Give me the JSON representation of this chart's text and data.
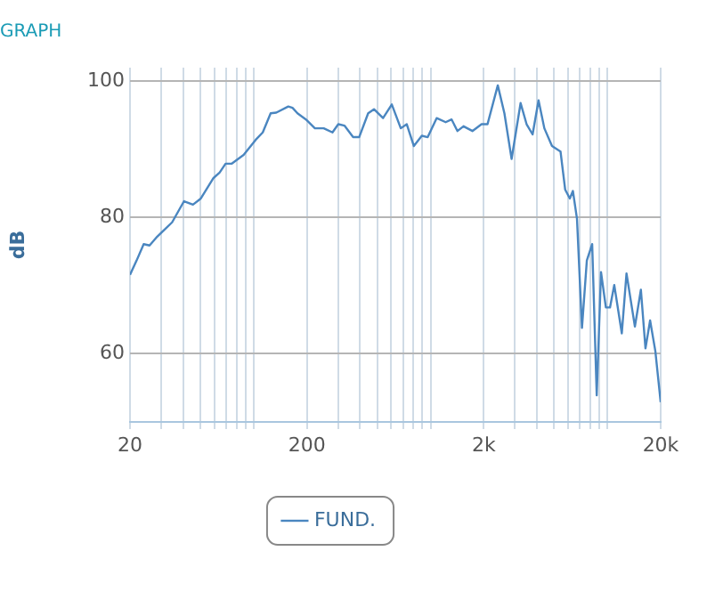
{
  "chart_data": {
    "type": "line",
    "title": "GRAPH",
    "ylabel": "dB",
    "log": "x",
    "grid": true,
    "legend": "bottom",
    "marker": "none",
    "line_style": "solid",
    "xlim": [
      20,
      20000
    ],
    "ylim": [
      50,
      102
    ],
    "yticks": [
      60,
      80,
      100
    ],
    "xticks": [
      20,
      {
        "value": 30,
        "label": null
      },
      {
        "value": 40,
        "label": null
      },
      {
        "value": 50,
        "label": null
      },
      {
        "value": 60,
        "label": null
      },
      {
        "value": 70,
        "label": null
      },
      {
        "value": 80,
        "label": null
      },
      {
        "value": 90,
        "label": null
      },
      {
        "value": 100,
        "label": null
      },
      200,
      {
        "value": 300,
        "label": null
      },
      {
        "value": 400,
        "label": null
      },
      {
        "value": 500,
        "label": null
      },
      {
        "value": 600,
        "label": null
      },
      {
        "value": 700,
        "label": null
      },
      {
        "value": 800,
        "label": null
      },
      {
        "value": 900,
        "label": null
      },
      {
        "value": 1000,
        "label": null
      },
      {
        "value": 2000,
        "label": "2k"
      },
      {
        "value": 3000,
        "label": null
      },
      {
        "value": 4000,
        "label": null
      },
      {
        "value": 5000,
        "label": null
      },
      {
        "value": 6000,
        "label": null
      },
      {
        "value": 7000,
        "label": null
      },
      {
        "value": 8000,
        "label": null
      },
      {
        "value": 9000,
        "label": null
      },
      {
        "value": 10000,
        "label": null
      },
      {
        "value": 20000,
        "label": "20k"
      }
    ],
    "x": [
      20,
      21.8,
      23.9,
      25.8,
      28.5,
      34.6,
      40.4,
      45.4,
      50.3,
      59.3,
      64.2,
      69.4,
      75,
      87.8,
      102.6,
      112.6,
      124.8,
      134.3,
      157,
      165.9,
      176.9,
      197.5,
      222,
      249,
      279,
      301,
      326,
      365,
      395,
      444,
      479,
      539,
      604,
      679,
      734,
      805,
      893,
      964,
      1083,
      1218,
      1316,
      1420,
      1536,
      1725,
      1943,
      2100,
      2400,
      2616,
      2873,
      3230,
      3492,
      3775,
      4080,
      4400,
      4860,
      5430,
      5770,
      6130,
      6380,
      6730,
      7180,
      7650,
      8200,
      8700,
      9200,
      9800,
      10340,
      10930,
      12060,
      12820,
      14300,
      15460,
      16410,
      17430,
      18660,
      20000
    ],
    "series": [
      {
        "name": "FUND.",
        "color": "#4a86c0",
        "values": [
          71.6,
          73.7,
          76.1,
          75.9,
          77.2,
          79.3,
          82.4,
          81.9,
          82.8,
          85.8,
          86.6,
          87.9,
          87.9,
          89.2,
          91.4,
          92.5,
          95.3,
          95.4,
          96.3,
          96.1,
          95.3,
          94.4,
          93.1,
          93.1,
          92.5,
          93.7,
          93.5,
          91.8,
          91.8,
          95.3,
          95.9,
          94.6,
          96.6,
          93.1,
          93.7,
          90.5,
          92,
          91.8,
          94.6,
          94,
          94.4,
          92.7,
          93.4,
          92.7,
          93.7,
          93.7,
          99.4,
          95.3,
          88.6,
          96.8,
          93.7,
          92.2,
          97.2,
          93.1,
          90.5,
          89.7,
          84.1,
          82.8,
          83.9,
          79.8,
          63.8,
          73.7,
          76.1,
          53.9,
          72,
          66.8,
          66.8,
          70.1,
          63,
          71.8,
          64,
          69.4,
          60.8,
          64.9,
          60.4,
          52.9
        ]
      }
    ]
  }
}
